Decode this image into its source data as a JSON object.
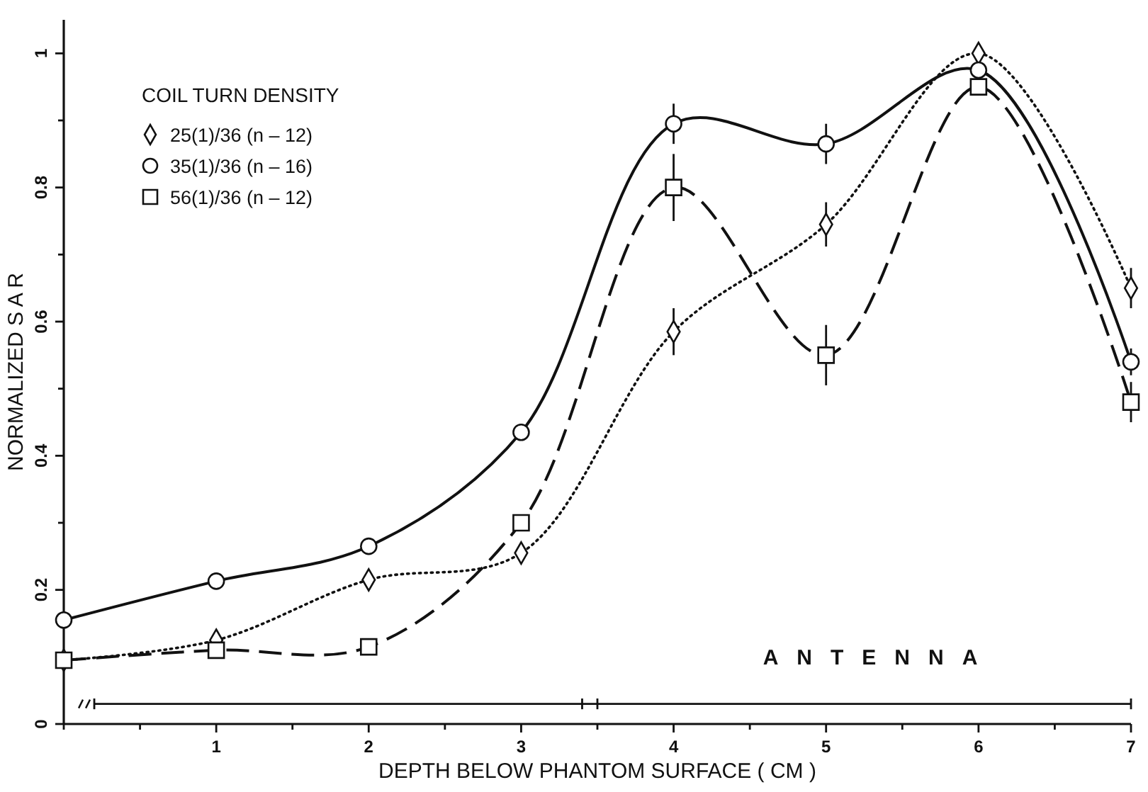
{
  "chart_data": {
    "type": "line",
    "xlabel": "DEPTH BELOW PHANTOM SURFACE ( CM )",
    "ylabel": "NORMALIZED S A R",
    "legend_title": "COIL TURN DENSITY",
    "legend": "top left",
    "annotations": [
      "ANTENNA"
    ],
    "x": [
      0,
      1,
      2,
      3,
      4,
      5,
      6,
      7
    ],
    "xlim": [
      0,
      7
    ],
    "xticks": [
      {
        "value": 0,
        "label": null
      },
      {
        "value": 0.5,
        "label": null
      },
      1,
      {
        "value": 1.5,
        "label": null
      },
      2,
      {
        "value": 2.5,
        "label": null
      },
      3,
      {
        "value": 3.5,
        "label": null
      },
      4,
      {
        "value": 4.5,
        "label": null
      },
      5,
      {
        "value": 5.5,
        "label": null
      },
      6,
      {
        "value": 6.5,
        "label": null
      },
      7
    ],
    "ylim": [
      0,
      1.05
    ],
    "yticks": [
      0,
      {
        "value": 0.1,
        "label": null
      },
      0.2,
      {
        "value": 0.3,
        "label": null
      },
      0.4,
      {
        "value": 0.5,
        "label": null
      },
      0.6,
      {
        "value": 0.7,
        "label": null
      },
      0.8,
      {
        "value": 0.9,
        "label": null
      },
      1
    ],
    "grid": false,
    "series": [
      {
        "name": "25(1)/36 (n ‒ 12)",
        "color": "#111111",
        "marker": "diamond",
        "line_style": "dotted",
        "values": [
          0.095,
          0.125,
          0.215,
          0.255,
          0.585,
          0.745,
          1.0,
          0.65
        ],
        "errors": [
          null,
          null,
          null,
          null,
          0.035,
          0.033,
          null,
          0.03
        ]
      },
      {
        "name": "35(1)/36 (n ‒ 16)",
        "color": "#111111",
        "marker": "circle",
        "line_style": "solid",
        "values": [
          0.155,
          0.213,
          0.265,
          0.435,
          0.895,
          0.865,
          0.975,
          0.54
        ],
        "errors": [
          null,
          null,
          null,
          null,
          0.03,
          0.03,
          null,
          0.02
        ]
      },
      {
        "name": "56(1)/36 (n ‒ 12)",
        "color": "#111111",
        "marker": "square",
        "line_style": "dashed",
        "values": [
          0.095,
          0.11,
          0.115,
          0.3,
          0.8,
          0.55,
          0.95,
          0.48
        ],
        "errors": [
          null,
          null,
          null,
          null,
          0.05,
          0.045,
          null,
          0.03
        ]
      },
      {
        "color": "#111111",
        "marker": "none",
        "line_style": "solid",
        "x": [
          0.2,
          3.4,
          3.5,
          7
        ],
        "values": [
          0.03,
          0.03,
          0.03,
          0.03
        ],
        "errors": [
          0.008,
          0.008,
          0.008,
          0.008
        ]
      }
    ]
  }
}
